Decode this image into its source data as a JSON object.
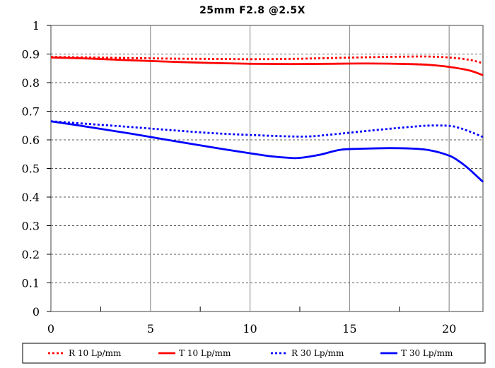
{
  "chart_data": {
    "type": "line",
    "title": "25mm F2.8  @2.5X",
    "xlabel": "",
    "ylabel": "",
    "xlim": [
      0,
      21.7
    ],
    "ylim": [
      0,
      1
    ],
    "x_ticks": [
      "0",
      "5",
      "10",
      "15",
      "20"
    ],
    "y_ticks": [
      "0",
      "0.1",
      "0.2",
      "0.3",
      "0.4",
      "0.5",
      "0.6",
      "0.7",
      "0.8",
      "0.9",
      "1"
    ],
    "grid": true,
    "legend_position": "bottom",
    "series": [
      {
        "name": "R 10 Lp/mm",
        "color": "#ff0000",
        "style": "dotted",
        "x": [
          0,
          2,
          4,
          6,
          8,
          10,
          12,
          14,
          16,
          18,
          19,
          20,
          21,
          21.7
        ],
        "y": [
          0.89,
          0.888,
          0.886,
          0.884,
          0.883,
          0.882,
          0.883,
          0.886,
          0.889,
          0.891,
          0.891,
          0.888,
          0.88,
          0.868
        ]
      },
      {
        "name": "T 10 Lp/mm",
        "color": "#ff0000",
        "style": "solid",
        "x": [
          0,
          2,
          4,
          6,
          8,
          10,
          12,
          14,
          16,
          18,
          19,
          20,
          21,
          21.7
        ],
        "y": [
          0.888,
          0.884,
          0.878,
          0.873,
          0.869,
          0.866,
          0.865,
          0.866,
          0.867,
          0.865,
          0.862,
          0.855,
          0.843,
          0.826
        ]
      },
      {
        "name": "R 30 Lp/mm",
        "color": "#0000ff",
        "style": "dotted",
        "x": [
          0,
          2,
          4,
          6,
          8,
          10,
          12,
          13,
          14,
          16,
          18,
          19,
          20,
          20.5,
          21,
          21.7
        ],
        "y": [
          0.665,
          0.655,
          0.645,
          0.634,
          0.624,
          0.617,
          0.612,
          0.612,
          0.618,
          0.632,
          0.645,
          0.65,
          0.649,
          0.642,
          0.63,
          0.61
        ]
      },
      {
        "name": "T 30 Lp/mm",
        "color": "#0000ff",
        "style": "solid",
        "x": [
          0,
          2,
          4,
          6,
          8,
          10,
          11,
          12,
          12.5,
          13.5,
          14.5,
          15.5,
          17,
          18,
          19,
          20,
          20.5,
          21,
          21.7
        ],
        "y": [
          0.665,
          0.644,
          0.622,
          0.598,
          0.575,
          0.553,
          0.543,
          0.537,
          0.537,
          0.548,
          0.565,
          0.569,
          0.571,
          0.57,
          0.564,
          0.545,
          0.525,
          0.498,
          0.453
        ]
      }
    ]
  }
}
